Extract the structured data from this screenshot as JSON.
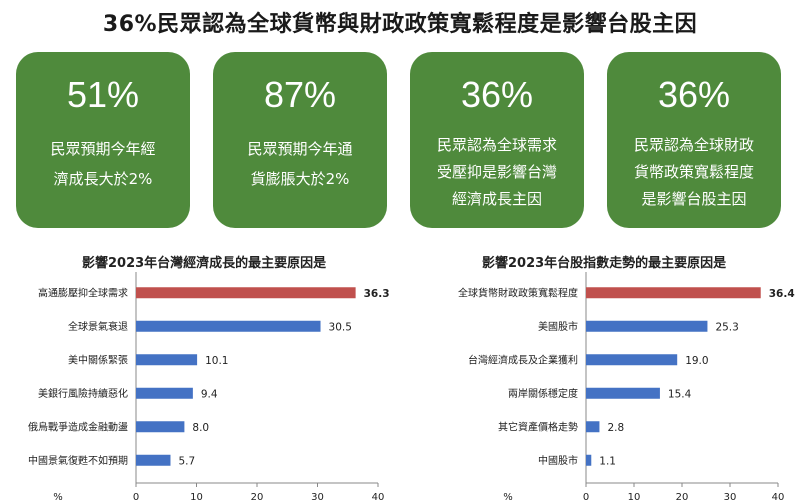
{
  "title": "36%民眾認為全球貨幣與財政政策寬鬆程度是影響台股主因",
  "cards": [
    {
      "value": "51%",
      "text": "民眾預期今年經\n濟成長大於2%"
    },
    {
      "value": "87%",
      "text": "民眾預期今年通\n貨膨脹大於2%"
    },
    {
      "value": "36%",
      "text": "民眾認為全球需求\n受壓抑是影響台灣\n經濟成長主因"
    },
    {
      "value": "36%",
      "text": "民眾認為全球財政\n貨幣政策寬鬆程度\n是影響台股主因"
    }
  ],
  "colors": {
    "card_bg": "#4f8a3c",
    "bar": "#4472c4",
    "bar_highlight": "#c0504d",
    "highlight_value": "#c0504d"
  },
  "chart_data": [
    {
      "type": "bar",
      "orientation": "horizontal",
      "title": "影響2023年台灣經濟成長的最主要原因是",
      "categories": [
        "高通膨壓抑全球需求",
        "全球景氣衰退",
        "美中關係緊張",
        "美銀行風險持續惡化",
        "俄烏戰爭造成金融動盪",
        "中國景氣復甦不如預期"
      ],
      "values": [
        36.3,
        30.5,
        10.1,
        9.4,
        8.0,
        5.7
      ],
      "value_labels": [
        "36.3",
        "30.5",
        "10.1",
        "9.4",
        "8.0",
        "5.7"
      ],
      "highlight_index": 0,
      "xlabel": "%",
      "xlim": [
        0,
        40
      ],
      "xticks": [
        "0",
        "10",
        "20",
        "30",
        "40"
      ]
    },
    {
      "type": "bar",
      "orientation": "horizontal",
      "title": "影響2023年台股指數走勢的最主要原因是",
      "categories": [
        "全球貨幣財政政策寬鬆程度",
        "美國股市",
        "台灣經濟成長及企業獲利",
        "兩岸關係穩定度",
        "其它資產價格走勢",
        "中國股市"
      ],
      "values": [
        36.4,
        25.3,
        19.0,
        15.4,
        2.8,
        1.1
      ],
      "value_labels": [
        "36.4",
        "25.3",
        "19.0",
        "15.4",
        "2.8",
        "1.1"
      ],
      "highlight_index": 0,
      "xlabel": "%",
      "xlim": [
        0,
        40
      ],
      "xticks": [
        "0",
        "10",
        "20",
        "30",
        "40"
      ]
    }
  ]
}
